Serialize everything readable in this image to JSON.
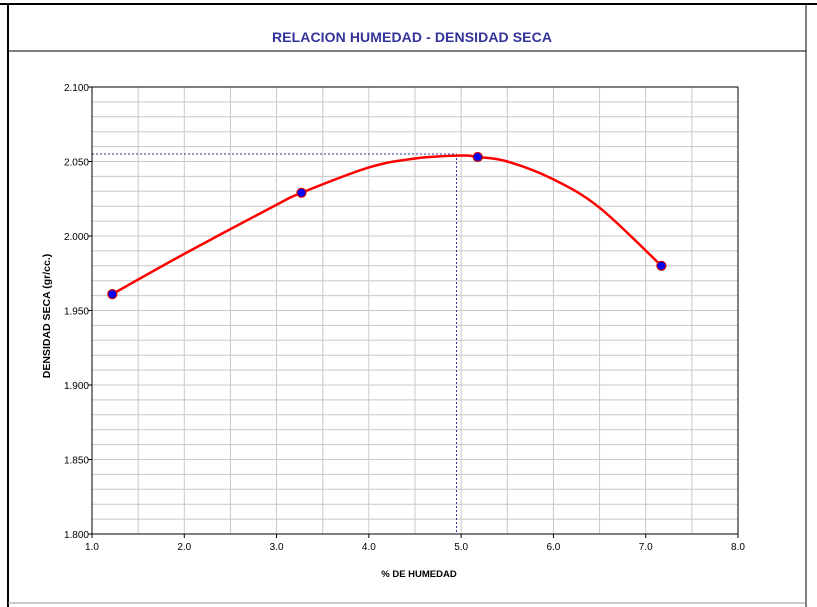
{
  "chart_data": {
    "type": "scatter",
    "title": "RELACION HUMEDAD - DENSIDAD SECA",
    "xlabel": "% DE HUMEDAD",
    "ylabel": "DENSIDAD SECA (gr/cc.)",
    "xlim": [
      1.0,
      8.0
    ],
    "ylim": [
      1.8,
      2.1
    ],
    "x_ticks": [
      "1.0",
      "2.0",
      "3.0",
      "4.0",
      "5.0",
      "6.0",
      "7.0",
      "8.0"
    ],
    "y_ticks": [
      "2.100",
      "2.050",
      "2.000",
      "1.950",
      "1.900",
      "1.850",
      "1.800"
    ],
    "grid": true,
    "points": [
      {
        "x": 1.22,
        "y": 1.961
      },
      {
        "x": 3.27,
        "y": 2.029
      },
      {
        "x": 5.18,
        "y": 2.053
      },
      {
        "x": 7.17,
        "y": 1.98
      }
    ],
    "fit_curve": {
      "type": "polynomial",
      "color": "#ff0000",
      "x": [
        1.22,
        2.0,
        3.0,
        3.27,
        4.0,
        4.5,
        5.0,
        5.18,
        5.5,
        6.0,
        6.5,
        7.17
      ],
      "y": [
        1.961,
        1.988,
        2.021,
        2.029,
        2.046,
        2.052,
        2.054,
        2.053,
        2.05,
        2.038,
        2.019,
        1.98
      ]
    },
    "optimum": {
      "x": 4.95,
      "y": 2.055
    },
    "colors": {
      "points": "#0000ff",
      "point_outline": "#cc0000",
      "curve": "#ff0000",
      "guide": "#333399",
      "title": "#333399",
      "grid": "#c8c8c8"
    }
  }
}
